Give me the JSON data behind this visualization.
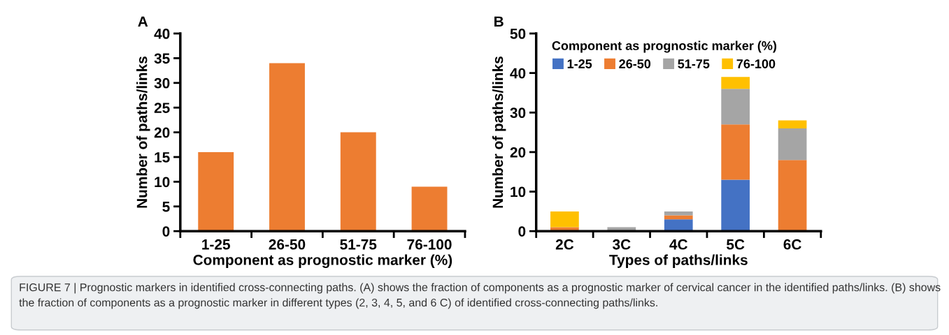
{
  "chart_data": [
    {
      "type": "bar",
      "title": "A",
      "categories": [
        "1-25",
        "26-50",
        "51-75",
        "76-100"
      ],
      "values": [
        16,
        34,
        20,
        9
      ],
      "color": "#ed7d31",
      "xlabel": "Component as prognostic marker (%)",
      "ylabel": "Number of paths/links",
      "ylim": [
        0,
        40
      ],
      "yticks": [
        0,
        5,
        10,
        15,
        20,
        25,
        30,
        35,
        40
      ],
      "grid": false,
      "legend": false,
      "annotations": [
        "FIGURE 7 | Prognostic markers in identified cross-connecting paths. (A) shows the fraction of components as a prognostic marker of cervical cancer in the identified paths/links. (B) shows the fraction of components as a prognostic marker in different types (2, 3, 4, 5, and 6 C) of identified cross-connecting paths/links."
      ]
    },
    {
      "type": "bar",
      "title": "B",
      "stacked": true,
      "categories": [
        "2C",
        "3C",
        "4C",
        "5C",
        "6C"
      ],
      "xlabel": "Types of paths/links",
      "ylabel": "Number of paths/links",
      "ylim": [
        0,
        50
      ],
      "yticks": [
        0,
        10,
        20,
        30,
        40,
        50
      ],
      "grid": false,
      "legend": "top",
      "legend_title": "Component as prognostic marker (%)",
      "series": [
        {
          "name": "1-25",
          "color": "#4472c4",
          "values": [
            0,
            0,
            3,
            13,
            0
          ]
        },
        {
          "name": "26-50",
          "color": "#ed7d31",
          "values": [
            1,
            0,
            1,
            14,
            18
          ]
        },
        {
          "name": "51-75",
          "color": "#a5a5a5",
          "values": [
            0,
            1,
            1,
            9,
            8
          ]
        },
        {
          "name": "76-100",
          "color": "#ffc000",
          "values": [
            4,
            0,
            0,
            3,
            2
          ]
        }
      ]
    }
  ]
}
